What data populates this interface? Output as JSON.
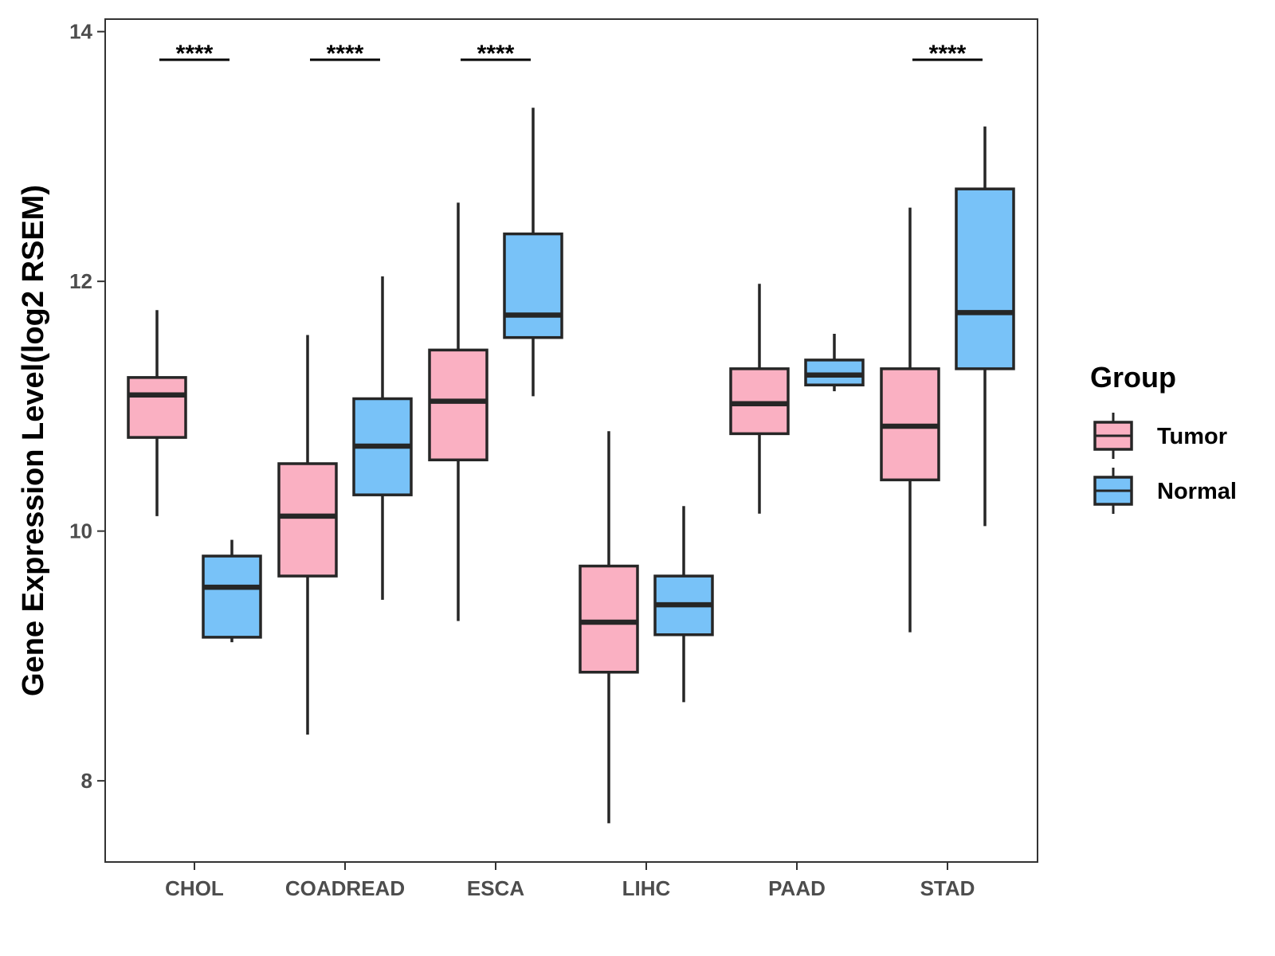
{
  "chart_data": {
    "type": "boxplot",
    "title": "",
    "xlabel": "",
    "ylabel": "Gene Expression Level(log2 RSEM)",
    "ylim": [
      7.35,
      14.1
    ],
    "yticks": [
      8,
      10,
      12,
      14
    ],
    "categories": [
      "CHOL",
      "COADREAD",
      "ESCA",
      "LIHC",
      "PAAD",
      "STAD"
    ],
    "legend": {
      "title": "Group",
      "position": "right",
      "entries": [
        {
          "name": "Tumor",
          "color": "#FAB0C2"
        },
        {
          "name": "Normal",
          "color": "#78C2F8"
        }
      ]
    },
    "series": [
      {
        "name": "Tumor",
        "color": "#FAB0C2",
        "boxes": [
          {
            "category": "CHOL",
            "min": 10.12,
            "q1": 10.75,
            "median": 11.09,
            "q3": 11.23,
            "max": 11.77
          },
          {
            "category": "COADREAD",
            "min": 8.37,
            "q1": 9.64,
            "median": 10.12,
            "q3": 10.54,
            "max": 11.57
          },
          {
            "category": "ESCA",
            "min": 9.28,
            "q1": 10.57,
            "median": 11.04,
            "q3": 11.45,
            "max": 12.63
          },
          {
            "category": "LIHC",
            "min": 7.66,
            "q1": 8.87,
            "median": 9.27,
            "q3": 9.72,
            "max": 10.8
          },
          {
            "category": "PAAD",
            "min": 10.14,
            "q1": 10.78,
            "median": 11.02,
            "q3": 11.3,
            "max": 11.98
          },
          {
            "category": "STAD",
            "min": 9.19,
            "q1": 10.41,
            "median": 10.84,
            "q3": 11.3,
            "max": 12.59
          }
        ]
      },
      {
        "name": "Normal",
        "color": "#78C2F8",
        "boxes": [
          {
            "category": "CHOL",
            "min": 9.11,
            "q1": 9.15,
            "median": 9.55,
            "q3": 9.8,
            "max": 9.93
          },
          {
            "category": "COADREAD",
            "min": 9.45,
            "q1": 10.29,
            "median": 10.68,
            "q3": 11.06,
            "max": 12.04
          },
          {
            "category": "ESCA",
            "min": 11.08,
            "q1": 11.55,
            "median": 11.73,
            "q3": 12.38,
            "max": 13.39
          },
          {
            "category": "LIHC",
            "min": 8.63,
            "q1": 9.17,
            "median": 9.41,
            "q3": 9.64,
            "max": 10.2
          },
          {
            "category": "PAAD",
            "min": 11.12,
            "q1": 11.17,
            "median": 11.25,
            "q3": 11.37,
            "max": 11.58
          },
          {
            "category": "STAD",
            "min": 10.04,
            "q1": 11.3,
            "median": 11.75,
            "q3": 12.74,
            "max": 13.24
          }
        ]
      }
    ],
    "significance": [
      {
        "category": "CHOL",
        "label": "****"
      },
      {
        "category": "COADREAD",
        "label": "****"
      },
      {
        "category": "ESCA",
        "label": "****"
      },
      {
        "category": "STAD",
        "label": "****"
      }
    ]
  }
}
